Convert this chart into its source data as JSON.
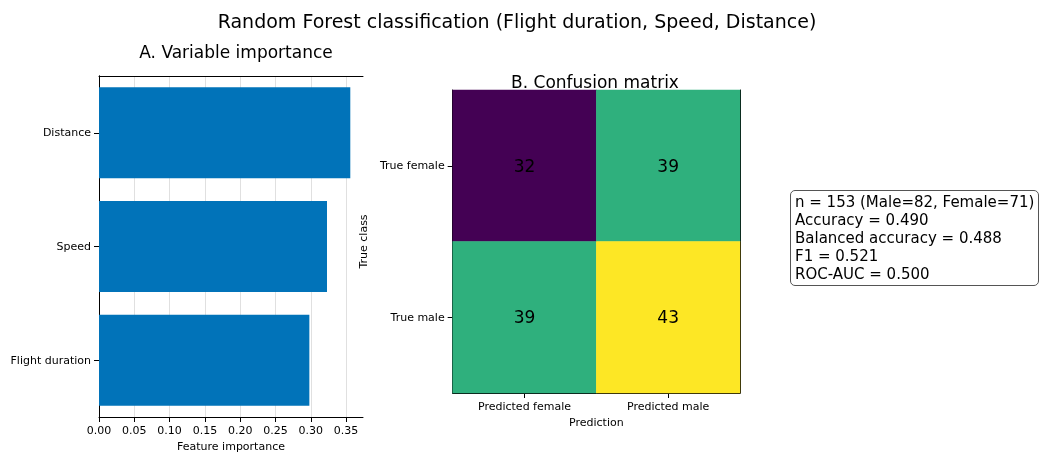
{
  "chart_data": [
    {
      "type": "other",
      "title": "Random Forest classification (Flight duration, Speed, Distance)"
    },
    {
      "type": "bar",
      "orientation": "horizontal",
      "title": "A. Variable importance",
      "xlabel": "Feature importance",
      "categories": [
        "Distance",
        "Speed",
        "Flight duration"
      ],
      "values": [
        0.356,
        0.323,
        0.298
      ],
      "color": "#0173b9",
      "xlim": [
        0,
        0.374
      ],
      "xticks": [
        {
          "value": 0,
          "label": "0.00"
        },
        0.05,
        {
          "value": 0.1,
          "label": "0.10"
        },
        0.15,
        {
          "value": 0.2,
          "label": "0.20"
        },
        0.25,
        {
          "value": 0.3,
          "label": "0.30"
        },
        0.35
      ],
      "grid": "x"
    },
    {
      "type": "heatmap",
      "title": "B. Confusion matrix",
      "xlabel": "Prediction",
      "ylabel": "True class",
      "categories": [
        "Predicted female",
        "Predicted male"
      ],
      "y_categories": [
        "True female",
        "True male"
      ],
      "cells": [
        [
          32,
          39
        ],
        [
          39,
          43
        ]
      ],
      "data_labels": true
    },
    {
      "type": "other",
      "annotations": [
        "n = 153 (Male=82, Female=71)",
        "Accuracy = 0.490",
        "Balanced accuracy = 0.488",
        "F1 = 0.521",
        "ROC-AUC = 0.500"
      ]
    }
  ]
}
